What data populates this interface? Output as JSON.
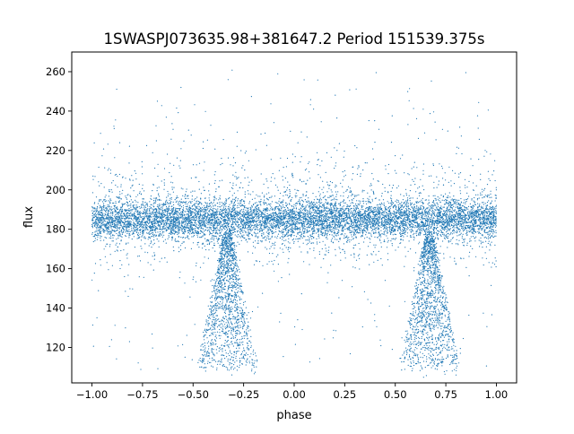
{
  "chart_data": {
    "type": "scatter",
    "title": "1SWASPJ073635.98+381647.2 Period 151539.375s",
    "xlabel": "phase",
    "ylabel": "flux",
    "xlim": [
      -1.1,
      1.1
    ],
    "ylim": [
      102,
      270
    ],
    "xticks": [
      -1.0,
      -0.75,
      -0.5,
      -0.25,
      0.0,
      0.25,
      0.5,
      0.75,
      1.0
    ],
    "xtick_labels": [
      "−1.00",
      "−0.75",
      "−0.50",
      "−0.25",
      "0.00",
      "0.25",
      "0.50",
      "0.75",
      "1.00"
    ],
    "yticks": [
      120,
      140,
      160,
      180,
      200,
      220,
      240,
      260
    ],
    "ytick_labels": [
      "120",
      "140",
      "160",
      "180",
      "200",
      "220",
      "240",
      "260"
    ],
    "grid": false,
    "marker_color": "#1f77b4",
    "phase_folded": true,
    "baseline_flux": 185,
    "baseline_scatter": 5,
    "phase_range": [
      -1.0,
      1.0
    ],
    "eclipse_centers": [
      -0.33,
      0.67
    ],
    "eclipse_min_flux": 110,
    "outlier_range": [
      108,
      262
    ]
  }
}
